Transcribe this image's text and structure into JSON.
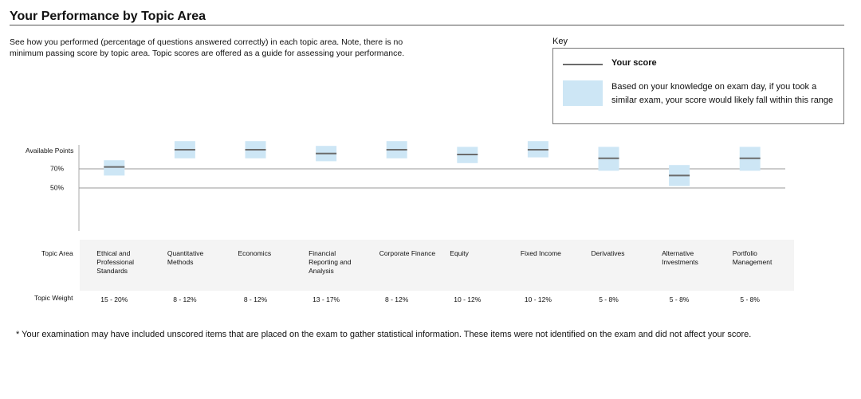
{
  "chart_data": {
    "type": "range",
    "title": "Your Performance by Topic Area",
    "description": "See how you performed (percentage of questions answered correctly) in each topic area. Note, there is no minimum passing score by topic area. Topic scores are offered as a guide for assessing your performance.",
    "key_title": "Key",
    "ylabel": "Available Points",
    "ylim": [
      5,
      95
    ],
    "yticks": [
      {
        "value": 70,
        "label": "70%"
      },
      {
        "value": 50,
        "label": "50%"
      }
    ],
    "grid": true,
    "categories_label": "Topic Area",
    "categories": [
      "Ethical and Professional Standards",
      "Quantitative Methods",
      "Economics",
      "Financial Reporting and Analysis",
      "Corporate Finance",
      "Equity",
      "Fixed Income",
      "Derivatives",
      "Alternative Investments",
      "Portfolio Management"
    ],
    "weights_label": "Topic Weight",
    "weights": [
      "15 - 20%",
      "8 - 12%",
      "8 - 12%",
      "13 - 17%",
      "8 - 12%",
      "10 - 12%",
      "10 - 12%",
      "5 - 8%",
      "5 - 8%",
      "5 - 8%"
    ],
    "series": [
      {
        "name": "Your score",
        "color": "#6b6b6b",
        "values": [
          72,
          90,
          90,
          86,
          90,
          85,
          90,
          81,
          63,
          81
        ]
      },
      {
        "name": "Based on your knowledge on exam day, if you took a similar exam, your score would likely fall within this range",
        "color": "#cde6f5",
        "low": [
          63,
          81,
          81,
          78,
          81,
          76,
          82,
          68,
          52,
          68
        ],
        "high": [
          79,
          99,
          99,
          94,
          99,
          93,
          99,
          93,
          74,
          93
        ]
      }
    ],
    "footnote": "* Your examination may have included unscored items that are placed on the exam to gather statistical information. These items were not identified on the exam and did not affect your score."
  }
}
